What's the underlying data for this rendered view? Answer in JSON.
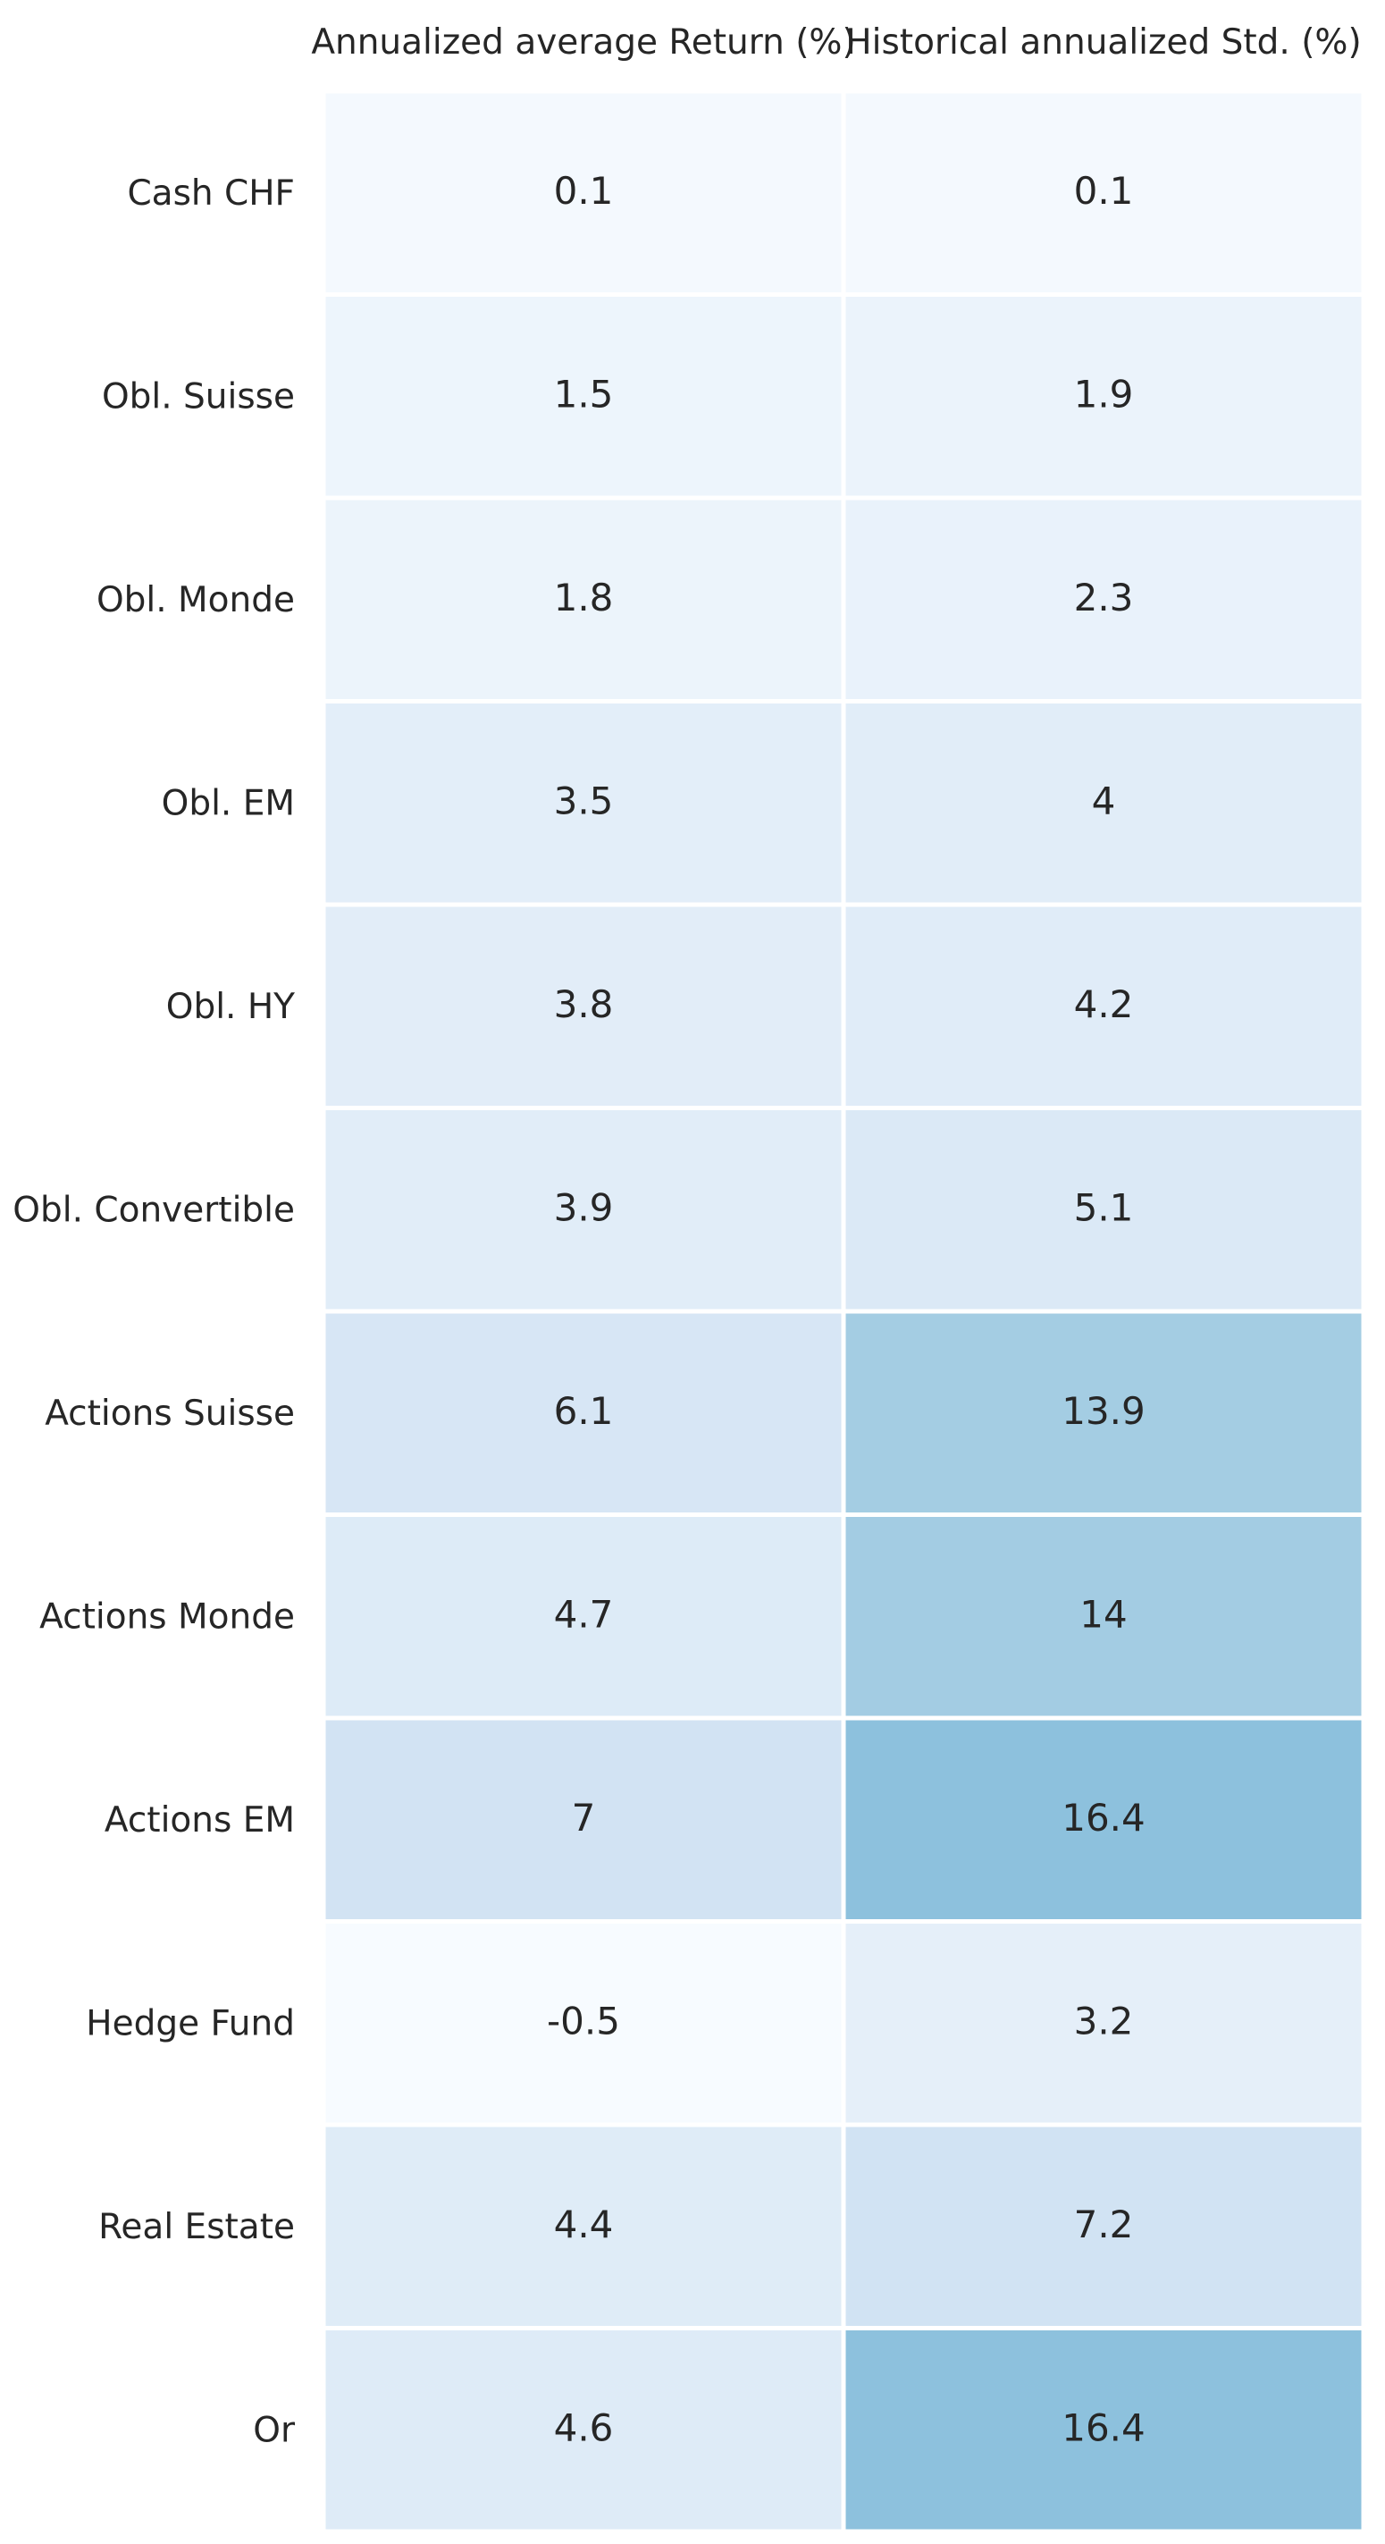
{
  "chart_data": {
    "type": "heatmap",
    "columns": [
      "Annualized average Return (%)",
      "Historical annualized Std. (%)"
    ],
    "rows": [
      "Cash CHF",
      "Obl. Suisse",
      "Obl. Monde",
      "Obl. EM",
      "Obl. HY",
      "Obl. Convertible",
      "Actions Suisse",
      "Actions Monde",
      "Actions EM",
      "Hedge Fund",
      "Real Estate",
      "Or"
    ],
    "values": [
      [
        0.1,
        0.1
      ],
      [
        1.5,
        1.9
      ],
      [
        1.8,
        2.3
      ],
      [
        3.5,
        4
      ],
      [
        3.8,
        4.2
      ],
      [
        3.9,
        5.1
      ],
      [
        6.1,
        13.9
      ],
      [
        4.7,
        14
      ],
      [
        7,
        16.4
      ],
      [
        -0.5,
        3.2
      ],
      [
        4.4,
        7.2
      ],
      [
        4.6,
        16.4
      ]
    ],
    "labels": [
      [
        "0.1",
        "0.1"
      ],
      [
        "1.5",
        "1.9"
      ],
      [
        "1.8",
        "2.3"
      ],
      [
        "3.5",
        "4"
      ],
      [
        "3.8",
        "4.2"
      ],
      [
        "3.9",
        "5.1"
      ],
      [
        "6.1",
        "13.9"
      ],
      [
        "4.7",
        "14"
      ],
      [
        "7",
        "16.4"
      ],
      [
        "-0.5",
        "3.2"
      ],
      [
        "4.4",
        "7.2"
      ],
      [
        "4.6",
        "16.4"
      ]
    ],
    "colorscale": {
      "name": "Blues",
      "vmin": -0.5,
      "vmax": 40,
      "stops": [
        "#f7fbff",
        "#deebf7",
        "#c6dbef",
        "#9ecae1",
        "#6baed6",
        "#4292c6",
        "#2171b5",
        "#08519c",
        "#08306b"
      ]
    },
    "column_labels_position": "top",
    "grid": false,
    "legend": "none"
  }
}
